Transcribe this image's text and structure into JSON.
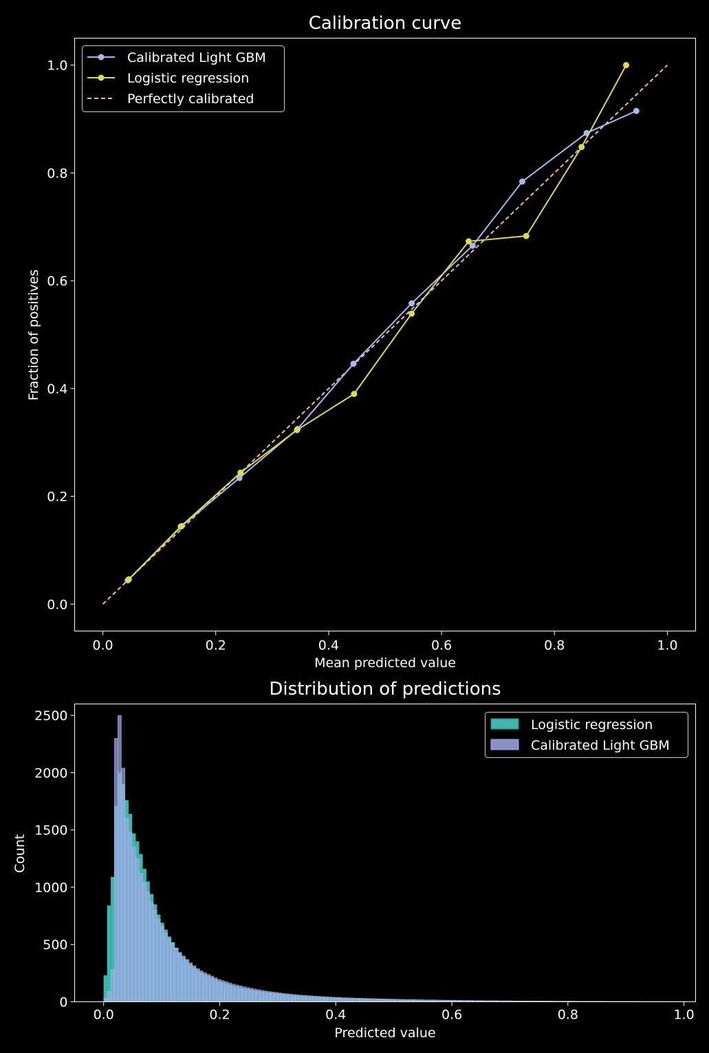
{
  "chart_data": [
    {
      "type": "line",
      "title": "Calibration curve",
      "xlabel": "Mean predicted value",
      "ylabel": "Fraction of positives",
      "xlim": [
        -0.05,
        1.05
      ],
      "ylim": [
        -0.05,
        1.05
      ],
      "xticks": [
        "0.0",
        "0.2",
        "0.4",
        "0.6",
        "0.8",
        "1.0"
      ],
      "yticks": [
        "0.0",
        "0.2",
        "0.4",
        "0.6",
        "0.8",
        "1.0"
      ],
      "grid": false,
      "legend": "top-left",
      "series": [
        {
          "name": "Calibrated Light GBM",
          "color": "#a9b8ee",
          "marker": "circle",
          "x": [
            0.044,
            0.14,
            0.242,
            0.345,
            0.444,
            0.547,
            0.655,
            0.743,
            0.857,
            0.945
          ],
          "y": [
            0.044,
            0.145,
            0.234,
            0.325,
            0.446,
            0.558,
            0.665,
            0.784,
            0.874,
            0.915
          ]
        },
        {
          "name": "Logistic regression",
          "color": "#dcdc50",
          "marker": "circle",
          "x": [
            0.046,
            0.138,
            0.244,
            0.344,
            0.445,
            0.547,
            0.648,
            0.75,
            0.848,
            0.927
          ],
          "y": [
            0.046,
            0.144,
            0.244,
            0.323,
            0.39,
            0.539,
            0.673,
            0.683,
            0.848,
            1.0
          ]
        },
        {
          "name": "Perfectly calibrated",
          "color": "#f0b4c8",
          "style": "dashed",
          "x": [
            0,
            1
          ],
          "y": [
            0,
            1
          ]
        }
      ]
    },
    {
      "type": "histogram",
      "title": "Distribution of predictions",
      "xlabel": "Predicted value",
      "ylabel": "Count",
      "xlim": [
        -0.05,
        1.02
      ],
      "ylim": [
        0,
        2600
      ],
      "xticks": [
        "0.0",
        "0.2",
        "0.4",
        "0.6",
        "0.8",
        "1.0"
      ],
      "yticks": [
        "0",
        "500",
        "1000",
        "1500",
        "2000",
        "2500"
      ],
      "grid": false,
      "legend": "top-right",
      "bin_width": 0.00612,
      "bin_start": 0,
      "series": [
        {
          "name": "Logistic regression",
          "color": "#3fb5ad",
          "counts": [
            230,
            840,
            1090,
            1710,
            2000,
            1900,
            1760,
            1640,
            1470,
            1400,
            1290,
            1160,
            1050,
            940,
            850,
            760,
            690,
            630,
            570,
            520,
            470,
            430,
            390,
            360,
            330,
            305,
            280,
            260,
            240,
            225,
            210,
            195,
            180,
            170,
            160,
            150,
            140,
            132,
            125,
            118,
            111,
            105,
            99,
            94,
            89,
            84,
            80,
            76,
            72,
            69,
            66,
            63,
            60,
            57,
            54,
            52,
            50,
            48,
            46,
            44,
            42,
            40,
            38,
            37,
            35,
            34,
            33,
            32,
            30,
            29,
            28,
            27,
            26,
            25,
            25,
            24,
            23,
            22,
            21,
            21,
            20,
            19,
            19,
            18,
            17,
            17,
            16,
            16,
            15,
            15,
            14,
            14,
            13,
            13,
            13,
            12,
            12,
            11,
            11,
            11,
            10,
            10,
            10,
            9,
            9,
            9,
            9,
            8,
            8,
            8,
            8,
            7,
            7,
            7,
            7,
            7,
            6,
            6,
            6,
            6,
            6,
            6,
            5,
            5,
            5,
            5,
            5,
            5,
            5,
            4,
            4,
            4,
            4,
            4,
            4,
            4,
            4,
            4,
            3,
            3,
            3,
            3,
            3,
            3,
            3,
            3,
            3,
            3,
            3,
            2,
            2,
            2,
            2,
            2,
            2,
            2,
            2,
            2,
            2,
            2,
            2,
            2,
            2,
            2,
            2
          ]
        },
        {
          "name": "Calibrated Light GBM",
          "color": "#a0aae6",
          "counts": [
            30,
            90,
            280,
            2300,
            2500,
            2040,
            1600,
            1480,
            1350,
            1250,
            1120,
            1040,
            960,
            870,
            800,
            720,
            660,
            600,
            550,
            510,
            470,
            430,
            400,
            370,
            340,
            315,
            290,
            270,
            255,
            240,
            225,
            210,
            195,
            185,
            175,
            165,
            155,
            147,
            140,
            132,
            125,
            118,
            112,
            106,
            100,
            95,
            90,
            86,
            82,
            78,
            74,
            70,
            67,
            64,
            61,
            58,
            56,
            54,
            52,
            50,
            48,
            46,
            44,
            42,
            41,
            39,
            38,
            36,
            35,
            34,
            33,
            32,
            31,
            30,
            29,
            28,
            27,
            26,
            25,
            24,
            24,
            23,
            22,
            21,
            21,
            20,
            19,
            19,
            18,
            18,
            17,
            17,
            16,
            16,
            15,
            15,
            14,
            14,
            14,
            13,
            13,
            12,
            12,
            12,
            11,
            11,
            11,
            10,
            10,
            10,
            10,
            9,
            9,
            9,
            9,
            8,
            8,
            8,
            8,
            8,
            7,
            7,
            7,
            7,
            7,
            7,
            6,
            6,
            6,
            6,
            6,
            6,
            6,
            5,
            5,
            5,
            5,
            5,
            5,
            5,
            5,
            4,
            4,
            4,
            4,
            4,
            4,
            4,
            4,
            4,
            4,
            3,
            3,
            3,
            3,
            3,
            3,
            3,
            3,
            3,
            3,
            3,
            3,
            3
          ]
        }
      ]
    }
  ]
}
